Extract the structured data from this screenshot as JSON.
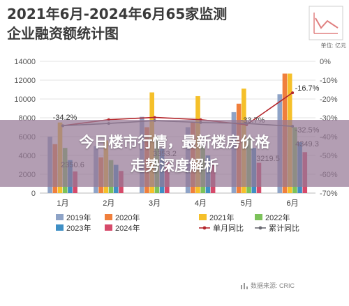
{
  "title_line1": "2021年6月-2024年6月65家监测",
  "title_line2": "企业融资额统计图",
  "logo_label": "单位: 亿元",
  "headline_line1": "今日楼市行情，最新楼房价格",
  "headline_line2": "走势深度解析",
  "source": "数据来源: CRIC",
  "colors": {
    "2019年": "#8ea3c7",
    "2020年": "#f07f3c",
    "2021年": "#f5c02a",
    "2022年": "#7cc25a",
    "2023年": "#3f8fc5",
    "2024年": "#d64a6a",
    "单月同比": "#b5282e",
    "累计同比": "#6a6a72"
  },
  "chart_data": {
    "type": "bar",
    "categories": [
      "1月",
      "2月",
      "3月",
      "4月",
      "5月",
      "6月"
    ],
    "ylim": [
      0,
      14000
    ],
    "y2lim": [
      -70,
      0
    ],
    "yticks": [
      0,
      2000,
      4000,
      6000,
      8000,
      10000,
      12000,
      14000
    ],
    "y2ticks": [
      "0%",
      "-10%",
      "-20%",
      "-30%",
      "-40%",
      "-50%",
      "-60%",
      "-70%"
    ],
    "series": [
      {
        "name": "2019年",
        "values": [
          6000,
          5000,
          8100,
          7000,
          8600,
          10500
        ]
      },
      {
        "name": "2020年",
        "values": [
          5200,
          3800,
          7000,
          7500,
          9500,
          12700
        ]
      },
      {
        "name": "2021年",
        "values": [
          7500,
          5600,
          10700,
          10300,
          11100,
          12700
        ]
      },
      {
        "name": "2022年",
        "values": [
          4800,
          3500,
          6000,
          5000,
          5800,
          7000
        ]
      },
      {
        "name": "2023年",
        "values": [
          3500,
          3000,
          4700,
          4000,
          4800,
          5400
        ]
      },
      {
        "name": "2024年",
        "values": [
          2300,
          2350,
          3300,
          3000,
          3220,
          4350
        ]
      }
    ],
    "lines": [
      {
        "name": "单月同比",
        "axis": "right",
        "values": [
          -34.2,
          -31.0,
          -29.8,
          -31.0,
          -33.7,
          -16.7
        ]
      },
      {
        "name": "累计同比",
        "axis": "right",
        "values": [
          -34.2,
          -33.0,
          -31.5,
          -32.5,
          -33.0,
          -34.5
        ]
      }
    ],
    "annotations": [
      "-34.2%",
      "2350.6",
      "-33.7%",
      "3219.5",
      "-16.7%",
      "3353.2",
      "-32.5%",
      "4349.3"
    ],
    "legend": [
      "2019年",
      "2020年",
      "2021年",
      "2022年",
      "2023年",
      "2024年",
      "单月同比",
      "累计同比"
    ],
    "grid": true
  }
}
